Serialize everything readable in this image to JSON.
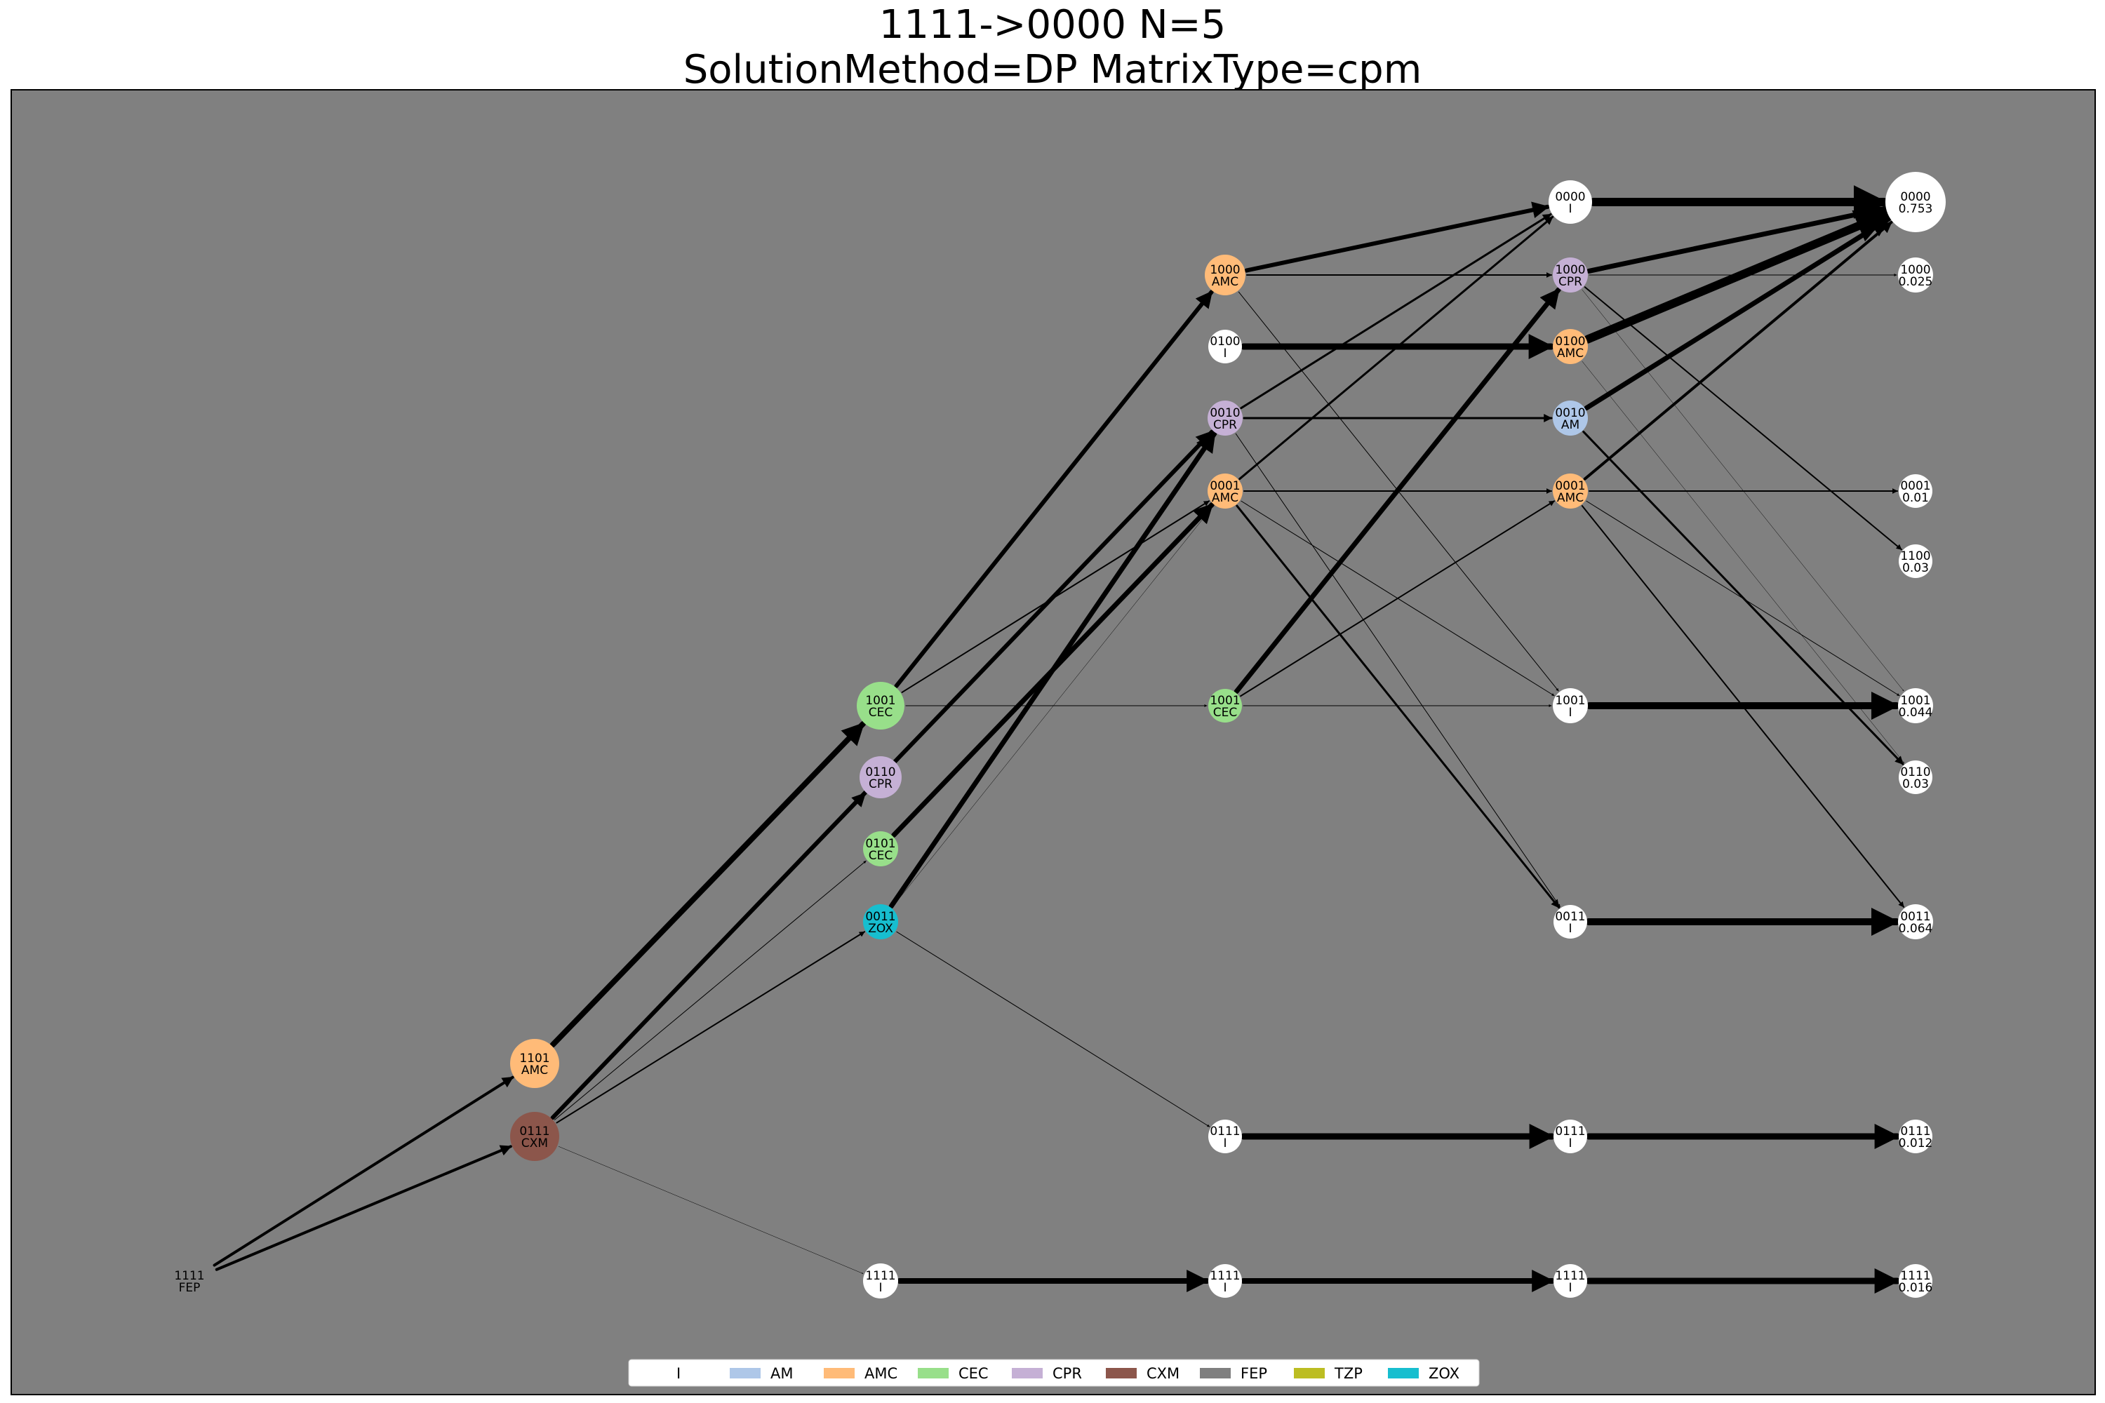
{
  "title": {
    "line1": "1111->0000 N=5",
    "line2": "SolutionMethod=DP MatrixType=cpm"
  },
  "colors": {
    "background": "#808080",
    "edge": "#000000",
    "I": "#ffffff",
    "AM": "#aec7e8",
    "AMC": "#ffbb78",
    "CEC": "#98df8a",
    "CPR": "#c5b0d5",
    "CXM": "#8c564b",
    "FEP": "#7f7f7f",
    "TZP": "#bcbd22",
    "ZOX": "#17becf"
  },
  "legend": [
    {
      "label": "I",
      "color": "#ffffff"
    },
    {
      "label": "AM",
      "color": "#aec7e8"
    },
    {
      "label": "AMC",
      "color": "#ffbb78"
    },
    {
      "label": "CEC",
      "color": "#98df8a"
    },
    {
      "label": "CPR",
      "color": "#c5b0d5"
    },
    {
      "label": "CXM",
      "color": "#8c564b"
    },
    {
      "label": "FEP",
      "color": "#7f7f7f"
    },
    {
      "label": "TZP",
      "color": "#bcbd22"
    },
    {
      "label": "ZOX",
      "color": "#17becf"
    }
  ],
  "nodes": [
    {
      "id": "s0_1111",
      "step": 0,
      "state": "1111",
      "label": "FEP",
      "type": "FEP"
    },
    {
      "id": "s1_1101",
      "step": 1,
      "state": "1101",
      "label": "AMC",
      "type": "AMC"
    },
    {
      "id": "s1_0111",
      "step": 1,
      "state": "0111",
      "label": "CXM",
      "type": "CXM"
    },
    {
      "id": "s2_1001",
      "step": 2,
      "state": "1001",
      "label": "CEC",
      "type": "CEC"
    },
    {
      "id": "s2_0110",
      "step": 2,
      "state": "0110",
      "label": "CPR",
      "type": "CPR"
    },
    {
      "id": "s2_0101",
      "step": 2,
      "state": "0101",
      "label": "CEC",
      "type": "CEC"
    },
    {
      "id": "s2_0011",
      "step": 2,
      "state": "0011",
      "label": "ZOX",
      "type": "ZOX"
    },
    {
      "id": "s2_1111",
      "step": 2,
      "state": "1111",
      "label": "I",
      "type": "I"
    },
    {
      "id": "s3_1000",
      "step": 3,
      "state": "1000",
      "label": "AMC",
      "type": "AMC"
    },
    {
      "id": "s3_0100",
      "step": 3,
      "state": "0100",
      "label": "I",
      "type": "I"
    },
    {
      "id": "s3_0010",
      "step": 3,
      "state": "0010",
      "label": "CPR",
      "type": "CPR"
    },
    {
      "id": "s3_0001",
      "step": 3,
      "state": "0001",
      "label": "AMC",
      "type": "AMC"
    },
    {
      "id": "s3_1001",
      "step": 3,
      "state": "1001",
      "label": "CEC",
      "type": "CEC"
    },
    {
      "id": "s3_0111",
      "step": 3,
      "state": "0111",
      "label": "I",
      "type": "I"
    },
    {
      "id": "s3_1111",
      "step": 3,
      "state": "1111",
      "label": "I",
      "type": "I"
    },
    {
      "id": "s4_0000",
      "step": 4,
      "state": "0000",
      "label": "I",
      "type": "I"
    },
    {
      "id": "s4_1000",
      "step": 4,
      "state": "1000",
      "label": "CPR",
      "type": "CPR"
    },
    {
      "id": "s4_0100",
      "step": 4,
      "state": "0100",
      "label": "AMC",
      "type": "AMC"
    },
    {
      "id": "s4_0010",
      "step": 4,
      "state": "0010",
      "label": "AM",
      "type": "AM"
    },
    {
      "id": "s4_0001",
      "step": 4,
      "state": "0001",
      "label": "AMC",
      "type": "AMC"
    },
    {
      "id": "s4_1001",
      "step": 4,
      "state": "1001",
      "label": "I",
      "type": "I"
    },
    {
      "id": "s4_0011",
      "step": 4,
      "state": "0011",
      "label": "I",
      "type": "I"
    },
    {
      "id": "s4_0111",
      "step": 4,
      "state": "0111",
      "label": "I",
      "type": "I"
    },
    {
      "id": "s4_1111",
      "step": 4,
      "state": "1111",
      "label": "I",
      "type": "I"
    },
    {
      "id": "s5_0000",
      "step": 5,
      "state": "0000",
      "label": "0.753",
      "type": "I"
    },
    {
      "id": "s5_1000",
      "step": 5,
      "state": "1000",
      "label": "0.025",
      "type": "I"
    },
    {
      "id": "s5_0001",
      "step": 5,
      "state": "0001",
      "label": "0.01",
      "type": "I"
    },
    {
      "id": "s5_1100",
      "step": 5,
      "state": "1100",
      "label": "0.03",
      "type": "I"
    },
    {
      "id": "s5_1001",
      "step": 5,
      "state": "1001",
      "label": "0.044",
      "type": "I"
    },
    {
      "id": "s5_0110",
      "step": 5,
      "state": "0110",
      "label": "0.03",
      "type": "I"
    },
    {
      "id": "s5_0011",
      "step": 5,
      "state": "0011",
      "label": "0.064",
      "type": "I"
    },
    {
      "id": "s5_0111",
      "step": 5,
      "state": "0111",
      "label": "0.012",
      "type": "I"
    },
    {
      "id": "s5_1111",
      "step": 5,
      "state": "1111",
      "label": "0.016",
      "type": "I"
    }
  ],
  "edges": [
    {
      "from": "s0_1111",
      "to": "s1_1101",
      "weight": 4
    },
    {
      "from": "s0_1111",
      "to": "s1_0111",
      "weight": 4
    },
    {
      "from": "s1_1101",
      "to": "s2_1001",
      "weight": 8
    },
    {
      "from": "s1_0111",
      "to": "s2_0110",
      "weight": 5
    },
    {
      "from": "s1_0111",
      "to": "s2_0101",
      "weight": 1
    },
    {
      "from": "s1_0111",
      "to": "s2_0011",
      "weight": 2
    },
    {
      "from": "s1_0111",
      "to": "s2_1111",
      "weight": 0.5
    },
    {
      "from": "s2_1001",
      "to": "s3_1000",
      "weight": 6
    },
    {
      "from": "s2_1001",
      "to": "s3_0001",
      "weight": 2
    },
    {
      "from": "s2_1001",
      "to": "s3_1001",
      "weight": 1
    },
    {
      "from": "s2_0110",
      "to": "s3_0010",
      "weight": 4
    },
    {
      "from": "s2_0101",
      "to": "s3_0001",
      "weight": 7
    },
    {
      "from": "s2_0011",
      "to": "s3_0010",
      "weight": 7
    },
    {
      "from": "s2_0011",
      "to": "s3_0001",
      "weight": 0.5
    },
    {
      "from": "s2_0011",
      "to": "s3_0111",
      "weight": 1
    },
    {
      "from": "s1_0111",
      "to": "s3_0010",
      "weight": 6
    },
    {
      "from": "s2_1111",
      "to": "s3_1111",
      "weight": 8
    },
    {
      "from": "s3_1000",
      "to": "s4_0000",
      "weight": 6
    },
    {
      "from": "s3_1000",
      "to": "s4_1000",
      "weight": 2
    },
    {
      "from": "s3_1000",
      "to": "s4_1001",
      "weight": 1
    },
    {
      "from": "s3_0100",
      "to": "s4_0100",
      "weight": 9
    },
    {
      "from": "s3_0010",
      "to": "s4_0000",
      "weight": 3
    },
    {
      "from": "s3_0010",
      "to": "s4_0010",
      "weight": 3
    },
    {
      "from": "s3_0010",
      "to": "s4_0011",
      "weight": 1
    },
    {
      "from": "s3_0001",
      "to": "s4_0000",
      "weight": 3
    },
    {
      "from": "s3_0001",
      "to": "s4_0001",
      "weight": 2
    },
    {
      "from": "s3_0001",
      "to": "s4_1001",
      "weight": 1
    },
    {
      "from": "s3_0001",
      "to": "s4_0011",
      "weight": 3
    },
    {
      "from": "s3_1001",
      "to": "s4_1000",
      "weight": 7
    },
    {
      "from": "s3_1001",
      "to": "s4_0001",
      "weight": 2
    },
    {
      "from": "s3_1001",
      "to": "s4_1001",
      "weight": 1
    },
    {
      "from": "s3_0111",
      "to": "s4_0111",
      "weight": 9
    },
    {
      "from": "s3_1111",
      "to": "s4_1111",
      "weight": 8
    },
    {
      "from": "s4_0000",
      "to": "s5_0000",
      "weight": 12
    },
    {
      "from": "s4_1000",
      "to": "s5_0000",
      "weight": 7
    },
    {
      "from": "s4_1000",
      "to": "s5_1000",
      "weight": 1
    },
    {
      "from": "s4_1000",
      "to": "s5_1100",
      "weight": 2
    },
    {
      "from": "s4_1000",
      "to": "s5_1001",
      "weight": 0.5
    },
    {
      "from": "s4_0100",
      "to": "s5_0000",
      "weight": 12
    },
    {
      "from": "s4_0100",
      "to": "s5_0110",
      "weight": 0.5
    },
    {
      "from": "s4_0010",
      "to": "s5_0000",
      "weight": 7
    },
    {
      "from": "s4_0010",
      "to": "s5_0110",
      "weight": 3
    },
    {
      "from": "s4_0001",
      "to": "s5_0000",
      "weight": 4
    },
    {
      "from": "s4_0001",
      "to": "s5_0001",
      "weight": 2
    },
    {
      "from": "s4_0001",
      "to": "s5_1001",
      "weight": 1
    },
    {
      "from": "s4_0001",
      "to": "s5_0011",
      "weight": 2
    },
    {
      "from": "s4_1001",
      "to": "s5_1001",
      "weight": 10
    },
    {
      "from": "s4_0011",
      "to": "s5_0011",
      "weight": 10
    },
    {
      "from": "s4_0111",
      "to": "s5_0111",
      "weight": 9
    },
    {
      "from": "s4_1111",
      "to": "s5_1111",
      "weight": 9
    }
  ]
}
